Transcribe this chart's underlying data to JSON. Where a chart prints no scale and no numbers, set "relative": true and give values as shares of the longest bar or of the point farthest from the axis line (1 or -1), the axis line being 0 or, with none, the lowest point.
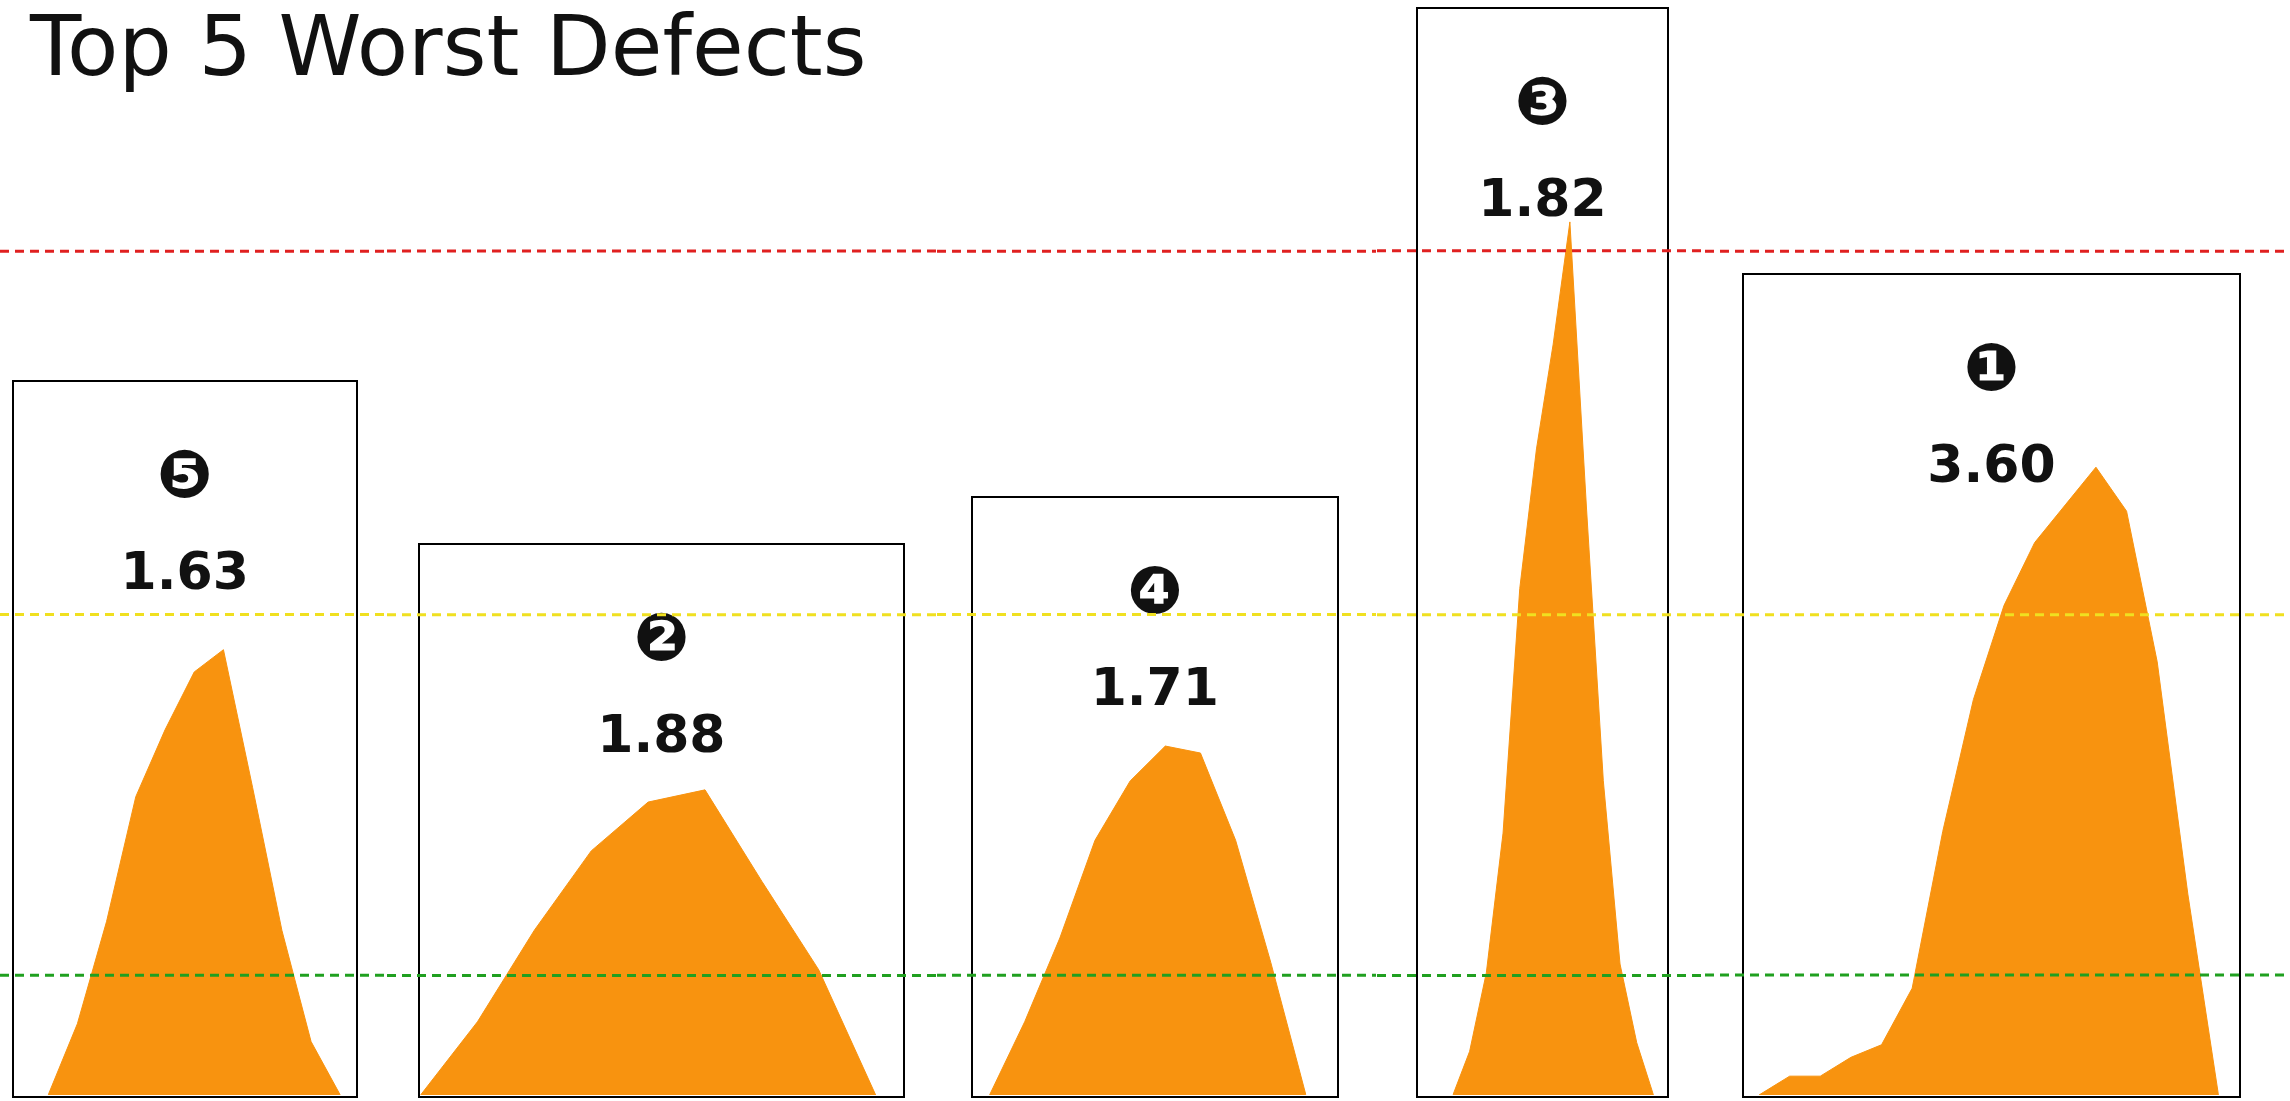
{
  "chart_data": [
    {
      "type": "area",
      "title": "Top 5 Worst Defects",
      "relative": true,
      "categories": [
        null,
        null,
        null,
        null,
        null,
        null,
        null,
        null,
        null,
        null,
        null
      ],
      "series": [
        {
          "color": "#f8930f",
          "values": [
            0,
            0.16,
            0.39,
            0.67,
            0.82,
            0.95,
            1,
            0.69,
            0.37,
            0.12,
            0
          ]
        }
      ],
      "annotations": [
        "❺",
        "1.63"
      ],
      "ref_lines": [
        {
          "axis": "y",
          "value": 1.895,
          "color": "#e02020",
          "line_style": "dashed"
        },
        {
          "axis": "y",
          "value": 1.079,
          "color": "#f0e020",
          "line_style": "dashed"
        },
        {
          "axis": "y",
          "value": 0.269,
          "color": "#20a020",
          "line_style": "dashed"
        }
      ]
    },
    {
      "type": "area",
      "relative": true,
      "categories": [
        null,
        null,
        null,
        null,
        null,
        null,
        null,
        null,
        null
      ],
      "series": [
        {
          "color": "#f8930f",
          "values": [
            0,
            0.24,
            0.54,
            0.8,
            0.96,
            1,
            0.7,
            0.41,
            0
          ]
        }
      ],
      "annotations": [
        "❷",
        "1.88"
      ],
      "ref_lines": [
        {
          "axis": "y",
          "value": 2.766,
          "color": "#e02020",
          "line_style": "dashed"
        },
        {
          "axis": "y",
          "value": 1.574,
          "color": "#f0e020",
          "line_style": "dashed"
        },
        {
          "axis": "y",
          "value": 0.392,
          "color": "#20a020",
          "line_style": "dashed"
        }
      ]
    },
    {
      "type": "area",
      "relative": true,
      "categories": [
        null,
        null,
        null,
        null,
        null,
        null,
        null,
        null,
        null,
        null
      ],
      "series": [
        {
          "color": "#f8930f",
          "values": [
            0,
            0.21,
            0.45,
            0.73,
            0.9,
            1,
            0.98,
            0.73,
            0.38,
            0
          ]
        }
      ],
      "annotations": [
        "❹",
        "1.71"
      ],
      "ref_lines": [
        {
          "axis": "y",
          "value": 2.418,
          "color": "#e02020",
          "line_style": "dashed"
        },
        {
          "axis": "y",
          "value": 1.377,
          "color": "#f0e020",
          "line_style": "dashed"
        },
        {
          "axis": "y",
          "value": 0.343,
          "color": "#20a020",
          "line_style": "dashed"
        }
      ]
    },
    {
      "type": "area",
      "relative": true,
      "categories": [
        null,
        null,
        null,
        null,
        null,
        null,
        null,
        null,
        null,
        null,
        null,
        null,
        null
      ],
      "series": [
        {
          "color": "#f8930f",
          "values": [
            0,
            0.05,
            0.14,
            0.3,
            0.58,
            0.74,
            0.86,
            1,
            0.67,
            0.36,
            0.15,
            0.06,
            0
          ]
        }
      ],
      "annotations": [
        "❸",
        "1.82"
      ],
      "ref_lines": [
        {
          "axis": "y",
          "value": 0.967,
          "color": "#e02020",
          "line_style": "dashed"
        },
        {
          "axis": "y",
          "value": 0.55,
          "color": "#f0e020",
          "line_style": "dashed"
        },
        {
          "axis": "y",
          "value": 0.137,
          "color": "#20a020",
          "line_style": "dashed"
        }
      ]
    },
    {
      "type": "area",
      "relative": true,
      "categories": [
        null,
        null,
        null,
        null,
        null,
        null,
        null,
        null,
        null,
        null,
        null,
        null,
        null,
        null,
        null,
        null
      ],
      "series": [
        {
          "color": "#f8930f",
          "values": [
            0,
            0.03,
            0.03,
            0.06,
            0.08,
            0.17,
            0.42,
            0.63,
            0.78,
            0.88,
            0.94,
            1,
            0.93,
            0.69,
            0.32,
            0
          ]
        }
      ],
      "annotations": [
        "❶",
        "3.60"
      ],
      "ref_lines": [
        {
          "axis": "y",
          "value": 1.344,
          "color": "#e02020",
          "line_style": "dashed"
        },
        {
          "axis": "y",
          "value": 0.765,
          "color": "#f0e020",
          "line_style": "dashed"
        },
        {
          "axis": "y",
          "value": 0.191,
          "color": "#20a020",
          "line_style": "dashed"
        }
      ]
    }
  ]
}
